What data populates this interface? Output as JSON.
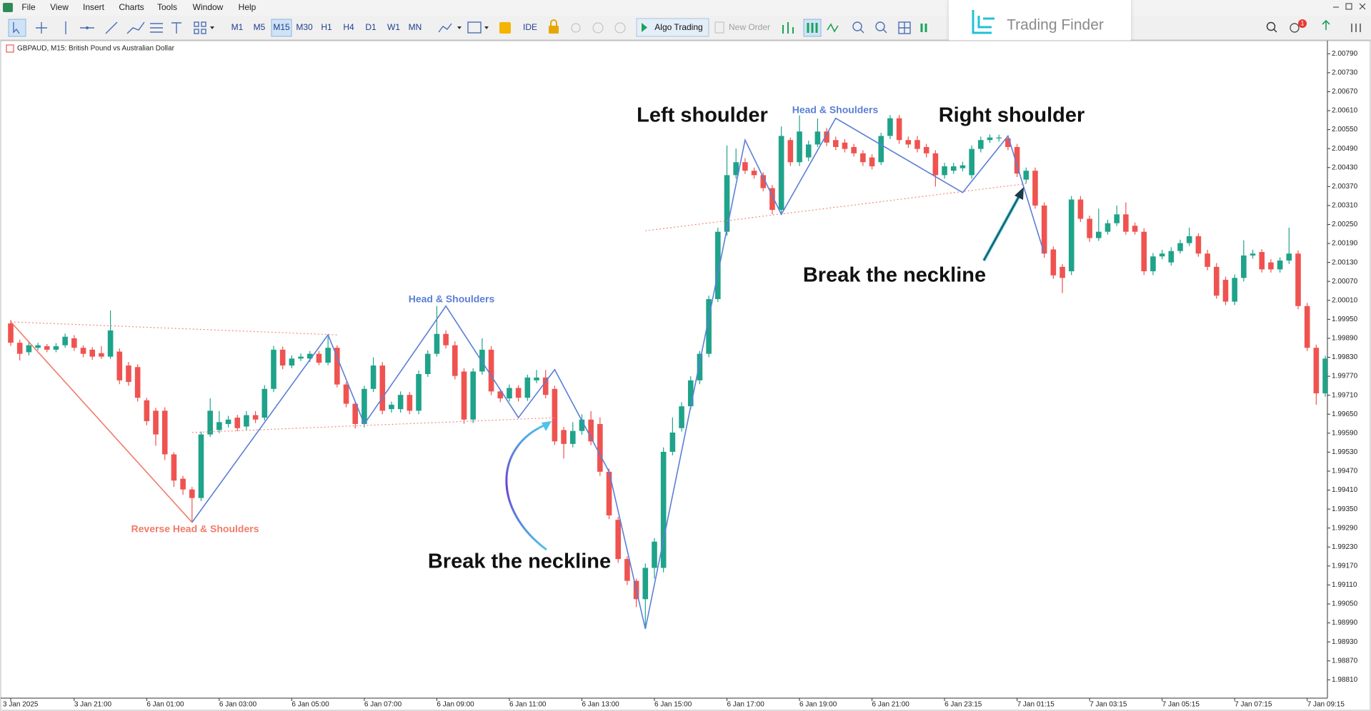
{
  "menu": [
    "File",
    "View",
    "Insert",
    "Charts",
    "Tools",
    "Window",
    "Help"
  ],
  "toolbar": {
    "timeframes": [
      "M1",
      "M5",
      "M15",
      "M30",
      "H1",
      "H4",
      "D1",
      "W1",
      "MN"
    ],
    "active_timeframe": 2,
    "ide": "IDE",
    "algo_trading": "Algo Trading",
    "new_order": "New Order",
    "notifications": 1
  },
  "brand": "Trading Finder",
  "chart_data": {
    "type": "candlestick",
    "title": "GBPAUD, M15: British Pound vs Australian Dollar",
    "up_color": "#1fa38a",
    "down_color": "#ef5350",
    "grid": false,
    "ylim": [
      1.98752,
      2.00829
    ],
    "yticks": [
      {
        "value": 2.0079,
        "label": "2.00790"
      },
      {
        "value": 2.0073,
        "label": "2.00730"
      },
      {
        "value": 2.0067,
        "label": "2.00670"
      },
      {
        "value": 2.0061,
        "label": "2.00610"
      },
      {
        "value": 2.0055,
        "label": "2.00550"
      },
      {
        "value": 2.0049,
        "label": "2.00490"
      },
      {
        "value": 2.0043,
        "label": "2.00430"
      },
      {
        "value": 2.0037,
        "label": "2.00370"
      },
      {
        "value": 2.0031,
        "label": "2.00310"
      },
      {
        "value": 2.0025,
        "label": "2.00250"
      },
      {
        "value": 2.0019,
        "label": "2.00190"
      },
      {
        "value": 2.0013,
        "label": "2.00130"
      },
      {
        "value": 2.0007,
        "label": "2.00070"
      },
      {
        "value": 2.0001,
        "label": "2.00010"
      },
      {
        "value": 1.9995,
        "label": "1.99950"
      },
      {
        "value": 1.9989,
        "label": "1.99890"
      },
      {
        "value": 1.9983,
        "label": "1.99830"
      },
      {
        "value": 1.9977,
        "label": "1.99770"
      },
      {
        "value": 1.9971,
        "label": "1.99710"
      },
      {
        "value": 1.9965,
        "label": "1.99650"
      },
      {
        "value": 1.9959,
        "label": "1.99590"
      },
      {
        "value": 1.9953,
        "label": "1.99530"
      },
      {
        "value": 1.9947,
        "label": "1.99470"
      },
      {
        "value": 1.9941,
        "label": "1.99410"
      },
      {
        "value": 1.9935,
        "label": "1.99350"
      },
      {
        "value": 1.9929,
        "label": "1.99290"
      },
      {
        "value": 1.9923,
        "label": "1.99230"
      },
      {
        "value": 1.9917,
        "label": "1.99170"
      },
      {
        "value": 1.9911,
        "label": "1.99110"
      },
      {
        "value": 1.9905,
        "label": "1.99050"
      },
      {
        "value": 1.9899,
        "label": "1.98990"
      },
      {
        "value": 1.9893,
        "label": "1.98930"
      },
      {
        "value": 1.9887,
        "label": "1.98870"
      },
      {
        "value": 1.9881,
        "label": "1.98810"
      }
    ],
    "categories": [
      "3 Jan 2025",
      null,
      null,
      null,
      null,
      null,
      null,
      "3 Jan 21:00",
      null,
      null,
      null,
      null,
      null,
      null,
      null,
      "6 Jan 01:00",
      null,
      null,
      null,
      null,
      null,
      null,
      null,
      "6 Jan 03:00",
      null,
      null,
      null,
      null,
      null,
      null,
      null,
      "6 Jan 05:00",
      null,
      null,
      null,
      null,
      null,
      null,
      null,
      "6 Jan 07:00",
      null,
      null,
      null,
      null,
      null,
      null,
      null,
      "6 Jan 09:00",
      null,
      null,
      null,
      null,
      null,
      null,
      null,
      "6 Jan 11:00",
      null,
      null,
      null,
      null,
      null,
      null,
      null,
      "6 Jan 13:00",
      null,
      null,
      null,
      null,
      null,
      null,
      null,
      "6 Jan 15:00",
      null,
      null,
      null,
      null,
      null,
      null,
      null,
      "6 Jan 17:00",
      null,
      null,
      null,
      null,
      null,
      null,
      null,
      "6 Jan 19:00",
      null,
      null,
      null,
      null,
      null,
      null,
      null,
      "6 Jan 21:00",
      null,
      null,
      null,
      null,
      null,
      null,
      null,
      "6 Jan 23:15",
      null,
      null,
      null,
      null,
      null,
      null,
      null,
      "7 Jan 01:15",
      null,
      null,
      null,
      null,
      null,
      null,
      null,
      "7 Jan 03:15",
      null,
      null,
      null,
      null,
      null,
      null,
      null,
      "7 Jan 05:15",
      null,
      null,
      null,
      null,
      null,
      null,
      null,
      "7 Jan 07:15",
      null,
      null,
      null,
      null,
      null,
      null,
      null,
      "7 Jan 09:15",
      null,
      null
    ],
    "open": [
      1.99937,
      1.99876,
      1.99846,
      1.9986,
      1.99865,
      1.99854,
      1.99868,
      1.9989,
      1.9986,
      1.99854,
      1.99843,
      1.99832,
      1.99848,
      1.99804,
      1.99799,
      1.99694,
      1.99661,
      1.99661,
      1.99523,
      1.99446,
      1.99412,
      1.99385,
      1.99586,
      1.996,
      1.99619,
      1.99639,
      1.99611,
      1.99647,
      1.99639,
      1.9973,
      1.99854,
      1.99804,
      1.99826,
      1.99826,
      1.99841,
      1.99813,
      1.9986,
      1.99744,
      1.99683,
      1.99619,
      1.9973,
      1.99804,
      1.99666,
      1.99666,
      1.99711,
      1.99661,
      1.99777,
      1.99841,
      1.99904,
      1.99868,
      1.99785,
      1.99633,
      1.99785,
      1.99854,
      1.99722,
      1.997,
      1.99733,
      1.99702,
      1.99757,
      1.99766,
      1.9973,
      1.996,
      1.99556,
      1.99597,
      1.99633,
      1.99619,
      1.99468,
      1.99316,
      1.99192,
      1.99123,
      1.99065,
      1.99164,
      1.99164,
      1.99531,
      1.99606,
      1.99675,
      1.99757,
      1.99841,
      2.00014,
      2.00227,
      2.00406,
      2.00447,
      2.0042,
      2.00406,
      2.00365,
      2.00296,
      2.00517,
      2.00447,
      2.00462,
      2.00503,
      2.00544,
      2.00517,
      2.00509,
      2.00495,
      2.00475,
      2.00462,
      2.00447,
      2.0053,
      2.00586,
      2.00517,
      2.00517,
      2.00495,
      2.00475,
      2.00406,
      2.0042,
      2.00428,
      2.00406,
      2.00489,
      2.00517,
      2.00522,
      2.00522,
      2.00495,
      2.00392,
      2.0042,
      2.0031,
      2.00171,
      2.00116,
      2.00102,
      2.00329,
      2.00268,
      2.00207,
      2.00227,
      2.00254,
      2.00282,
      2.00246,
      2.00227,
      2.00102,
      2.00149,
      2.0013,
      2.00166,
      2.00191,
      2.00213,
      2.00158,
      2.00116,
      2.00075,
      2.00006,
      2.00081,
      2.00152,
      2.00163,
      2.0013,
      2.00108,
      2.00136,
      2.00158,
      1.99992,
      1.9986,
      1.99716
    ],
    "high": [
      1.99948,
      1.99886,
      1.9988,
      1.99876,
      1.99872,
      1.99875,
      1.99905,
      1.999,
      1.99868,
      1.99862,
      1.99865,
      1.99978,
      1.99858,
      1.99815,
      1.99808,
      1.99702,
      1.9967,
      1.99672,
      1.9953,
      1.99455,
      1.9942,
      1.99595,
      1.997,
      1.9966,
      1.99645,
      1.99648,
      1.9966,
      1.9966,
      1.99742,
      1.99866,
      1.99864,
      1.99836,
      1.99842,
      1.9985,
      1.9985,
      1.99895,
      1.99868,
      1.99752,
      1.99692,
      1.9974,
      1.9983,
      1.99815,
      1.9969,
      1.99722,
      1.9972,
      1.99788,
      1.99852,
      1.99992,
      1.99915,
      1.9988,
      1.99795,
      1.99795,
      1.9989,
      1.99865,
      1.9973,
      1.99744,
      1.99742,
      1.99775,
      1.9979,
      1.9979,
      1.9974,
      1.9961,
      1.99625,
      1.9965,
      1.9966,
      1.9964,
      1.99478,
      1.99325,
      1.992,
      1.9913,
      1.99178,
      1.99258,
      1.99545,
      1.9964,
      1.99688,
      1.9977,
      1.9985,
      2.00025,
      2.0024,
      2.005,
      2.0049,
      2.0046,
      2.0043,
      2.00415,
      2.00375,
      2.0056,
      2.00525,
      2.00595,
      2.00515,
      2.00585,
      2.00555,
      2.00528,
      2.0052,
      2.00505,
      2.00485,
      2.00472,
      2.0054,
      2.00596,
      2.00596,
      2.00528,
      2.0053,
      2.00505,
      2.00485,
      2.00445,
      2.00445,
      2.00448,
      2.005,
      2.00528,
      2.00535,
      2.00534,
      2.00532,
      2.00505,
      2.0043,
      2.0043,
      2.0032,
      2.0018,
      2.00125,
      2.0034,
      2.0034,
      2.00278,
      2.003,
      2.00265,
      2.0031,
      2.0032,
      2.00256,
      2.00238,
      2.0016,
      2.0017,
      2.00178,
      2.00202,
      2.0024,
      2.00222,
      2.0017,
      2.00128,
      2.00085,
      2.00092,
      2.002,
      2.0017,
      2.00172,
      2.0014,
      2.00146,
      2.0024,
      2.00168,
      2.00002,
      1.9987,
      1.99835
    ],
    "low": [
      1.99866,
      1.9982,
      1.99836,
      1.99852,
      1.99846,
      1.99846,
      1.9986,
      1.9985,
      1.9983,
      1.99822,
      1.99825,
      1.99825,
      1.99745,
      1.9974,
      1.9969,
      1.99615,
      1.9955,
      1.99505,
      1.9942,
      1.99395,
      1.99308,
      1.99375,
      1.99578,
      1.9959,
      1.99608,
      1.99596,
      1.996,
      1.99622,
      1.9963,
      1.9972,
      1.99792,
      1.99795,
      1.99818,
      1.99815,
      1.99805,
      1.99805,
      1.99735,
      1.99672,
      1.99605,
      1.99608,
      1.9972,
      1.9965,
      1.99655,
      1.99655,
      1.9965,
      1.9965,
      1.99768,
      1.99832,
      1.99858,
      1.9976,
      1.9962,
      1.99622,
      1.99775,
      1.9971,
      1.99688,
      1.9969,
      1.9969,
      1.99692,
      1.99748,
      1.997,
      1.99552,
      1.9951,
      1.99545,
      1.99585,
      1.99552,
      1.99455,
      1.99318,
      1.9918,
      1.9911,
      1.9904,
      1.98971,
      1.9913,
      1.9915,
      1.9952,
      1.99595,
      1.99665,
      1.99745,
      1.9983,
      2.00005,
      2.00215,
      2.00395,
      2.0041,
      2.00395,
      2.00355,
      2.00282,
      2.00285,
      2.00435,
      2.00435,
      2.0045,
      2.00495,
      2.00498,
      2.00485,
      2.00478,
      2.00465,
      2.00435,
      2.00424,
      2.00438,
      2.0052,
      2.00505,
      2.00492,
      2.00478,
      2.00462,
      2.0037,
      2.00395,
      2.0041,
      2.00418,
      2.00395,
      2.00478,
      2.00508,
      2.00512,
      2.00485,
      2.004,
      2.0038,
      2.003,
      2.00145,
      2.00078,
      2.00033,
      2.0009,
      2.00258,
      2.00195,
      2.00198,
      2.00218,
      2.00245,
      2.00218,
      2.00218,
      2.0009,
      2.0009,
      2.0014,
      2.0012,
      2.00158,
      2.00182,
      2.00148,
      2.00105,
      2.00015,
      1.99995,
      1.99995,
      2.0007,
      2.00142,
      2.00098,
      2.00098,
      2.00098,
      2.00125,
      1.99982,
      1.9985,
      1.9968,
      1.99705
    ],
    "close": [
      1.99876,
      1.99841,
      1.99868,
      1.99868,
      1.99854,
      1.99865,
      1.99895,
      1.9986,
      1.99841,
      1.99832,
      1.99832,
      1.99915,
      1.99757,
      1.99752,
      1.99702,
      1.99628,
      1.99586,
      1.99523,
      1.9944,
      1.99412,
      1.99385,
      1.99586,
      1.99661,
      1.99625,
      1.99633,
      1.99606,
      1.99647,
      1.99633,
      1.9973,
      1.99854,
      1.99804,
      1.99826,
      1.99832,
      1.99841,
      1.99813,
      1.9986,
      1.99744,
      1.99683,
      1.99619,
      1.9973,
      1.99804,
      1.99661,
      1.9968,
      1.99711,
      1.99661,
      1.99777,
      1.99841,
      1.99904,
      1.99868,
      1.99771,
      1.99633,
      1.99785,
      1.99854,
      1.99722,
      1.997,
      1.99733,
      1.99702,
      1.99766,
      1.99766,
      1.99711,
      1.99564,
      1.99556,
      1.99597,
      1.99633,
      1.99564,
      1.99468,
      1.9933,
      1.99192,
      1.99123,
      1.99065,
      1.99164,
      1.99247,
      1.99531,
      1.99592,
      1.99675,
      1.99757,
      1.99841,
      2.00014,
      2.00227,
      2.00406,
      2.00447,
      2.0042,
      2.00406,
      2.00365,
      2.00296,
      2.0053,
      2.00447,
      2.00544,
      2.00503,
      2.00544,
      2.00509,
      2.00495,
      2.00489,
      2.00475,
      2.00447,
      2.00434,
      2.0053,
      2.00586,
      2.00517,
      2.00503,
      2.00489,
      2.00475,
      2.00406,
      2.00434,
      2.00434,
      2.00437,
      2.00489,
      2.00517,
      2.00525,
      2.00525,
      2.00495,
      2.00411,
      2.0042,
      2.0031,
      2.00158,
      2.00089,
      2.00081,
      2.00329,
      2.00268,
      2.00207,
      2.00227,
      2.00254,
      2.00282,
      2.00227,
      2.00227,
      2.00102,
      2.00149,
      2.00158,
      2.00166,
      2.00191,
      2.00213,
      2.00158,
      2.00116,
      2.00025,
      2.00006,
      2.00081,
      2.00152,
      2.00158,
      2.00108,
      2.00108,
      2.00136,
      2.00158,
      1.99992,
      1.9986,
      1.99716,
      1.99826
    ],
    "zigzags": [
      {
        "color": "#f07b6a",
        "points": [
          [
            0,
            1.99942
          ],
          [
            20,
            1.99308
          ]
        ]
      },
      {
        "color": "#5b7fd6",
        "points": [
          [
            20,
            1.99308
          ],
          [
            35,
            1.99901
          ],
          [
            39,
            1.99619
          ],
          [
            48,
            1.99992
          ],
          [
            56,
            1.99639
          ],
          [
            60,
            1.99791
          ],
          [
            66,
            1.99468
          ],
          [
            70,
            1.98971
          ],
          [
            81,
            2.00517
          ],
          [
            85,
            2.00282
          ],
          [
            91,
            2.00586
          ],
          [
            105,
            2.00351
          ],
          [
            110,
            2.0053
          ],
          [
            114,
            2.00158
          ]
        ]
      }
    ],
    "necklines": [
      {
        "color": "#f08a80",
        "points": [
          [
            0,
            1.99942
          ],
          [
            36,
            1.99901
          ]
        ]
      },
      {
        "color": "#f08a80",
        "points": [
          [
            20,
            1.99592
          ],
          [
            60,
            1.99639
          ]
        ]
      },
      {
        "color": "#f08a80",
        "points": [
          [
            70,
            2.0023
          ],
          [
            112,
            2.00379
          ]
        ]
      }
    ],
    "annotations": [
      {
        "text": "Left shoulder",
        "color": "#111111"
      },
      {
        "text": "Head & Shoulders",
        "color": "#5b7fd6"
      },
      {
        "text": "Right shoulder",
        "color": "#111111"
      },
      {
        "text": "Break the neckline",
        "color": "#111111"
      },
      {
        "text": "Head & Shoulders",
        "color": "#5b7fd6"
      },
      {
        "text": "Reverse Head & Shoulders",
        "color": "#f07b6a"
      },
      {
        "text": "Break the neckline",
        "color": "#111111"
      }
    ]
  }
}
